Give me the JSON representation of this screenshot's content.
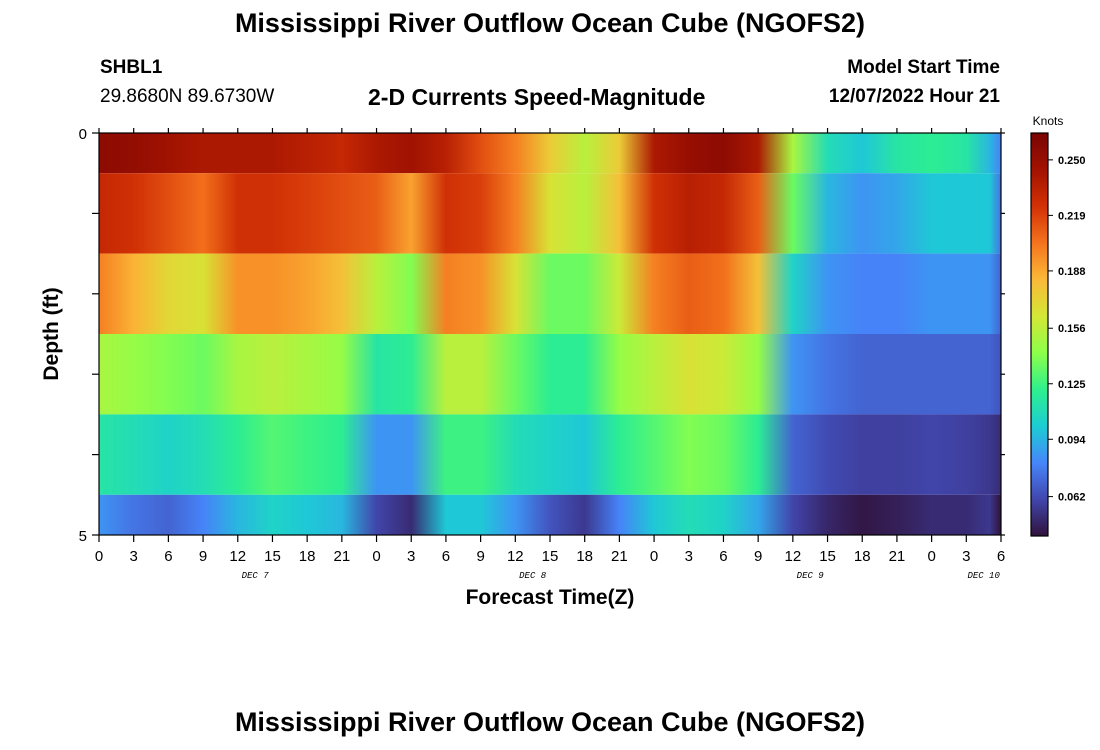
{
  "page": {
    "title_top": "Mississippi River Outflow Ocean Cube (NGOFS2)",
    "title_bottom": "Mississippi River Outflow Ocean Cube (NGOFS2)",
    "station_id": "SHBL1",
    "station_coords": "29.8680N  89.6730W",
    "subtitle": "2-D Currents Speed-Magnitude",
    "model_start_label": "Model Start Time",
    "model_start_value": "12/07/2022 Hour 21"
  },
  "colors": {
    "scale": [
      "#30123b",
      "#4146ad",
      "#4686fb",
      "#1ccdd3",
      "#2ef08d",
      "#8dff49",
      "#d4e735",
      "#fbb938",
      "#f4731d",
      "#d23105",
      "#a11201",
      "#7a0403"
    ]
  },
  "chart_data": {
    "type": "heatmap",
    "title": "2-D Currents Speed-Magnitude",
    "xlabel": "Forecast Time(Z)",
    "ylabel": "Depth (ft)",
    "ylim": [
      0,
      5
    ],
    "y_tick_labels": [
      "0",
      "5"
    ],
    "x_tick_labels": [
      "0",
      "3",
      "6",
      "9",
      "12",
      "15",
      "18",
      "21",
      "0",
      "3",
      "6",
      "9",
      "12",
      "15",
      "18",
      "21",
      "0",
      "3",
      "6",
      "9",
      "12",
      "15",
      "18",
      "21",
      "0",
      "3",
      "6"
    ],
    "date_labels": [
      {
        "label": "DEC 7",
        "hour": 13.5
      },
      {
        "label": "DEC 8",
        "hour": 37.5
      },
      {
        "label": "DEC 9",
        "hour": 61.5
      },
      {
        "label": "DEC 10",
        "hour": 76.5
      }
    ],
    "hours_total": 78,
    "layer_bounds": [
      0,
      0.5,
      1.5,
      2.5,
      3.5,
      4.5,
      5
    ],
    "colorbar": {
      "unit": "Knots",
      "min": 0.04,
      "max": 0.265,
      "tick_labels": [
        "0.250",
        "0.219",
        "0.188",
        "0.156",
        "0.125",
        "0.094",
        "0.062"
      ]
    },
    "series": [
      {
        "name": "depth layer 1 (surface)",
        "hours": [
          0,
          3,
          6,
          9,
          12,
          15,
          18,
          21,
          24,
          27,
          30,
          33,
          36,
          39,
          42,
          45,
          48,
          51,
          54,
          57,
          60,
          63,
          66,
          69,
          72,
          75,
          77,
          78
        ],
        "values": [
          0.255,
          0.252,
          0.245,
          0.24,
          0.24,
          0.24,
          0.235,
          0.23,
          0.24,
          0.245,
          0.235,
          0.215,
          0.2,
          0.175,
          0.155,
          0.175,
          0.24,
          0.25,
          0.255,
          0.24,
          0.15,
          0.11,
          0.1,
          0.115,
          0.12,
          0.115,
          0.095,
          0.08
        ]
      },
      {
        "name": "depth layer 2",
        "hours": [
          0,
          3,
          6,
          9,
          12,
          15,
          18,
          21,
          24,
          27,
          30,
          33,
          36,
          39,
          42,
          45,
          48,
          51,
          54,
          57,
          60,
          63,
          66,
          69,
          72,
          75,
          77,
          78
        ],
        "values": [
          0.23,
          0.225,
          0.215,
          0.205,
          0.225,
          0.225,
          0.22,
          0.215,
          0.21,
          0.19,
          0.225,
          0.22,
          0.2,
          0.165,
          0.155,
          0.18,
          0.225,
          0.235,
          0.23,
          0.21,
          0.135,
          0.095,
          0.085,
          0.09,
          0.1,
          0.1,
          0.1,
          0.075
        ]
      },
      {
        "name": "depth layer 3",
        "hours": [
          0,
          3,
          6,
          9,
          12,
          15,
          18,
          21,
          24,
          27,
          30,
          33,
          36,
          39,
          42,
          45,
          48,
          51,
          54,
          57,
          60,
          63,
          66,
          69,
          72,
          75,
          77,
          78
        ],
        "values": [
          0.2,
          0.185,
          0.17,
          0.165,
          0.195,
          0.195,
          0.19,
          0.18,
          0.155,
          0.14,
          0.2,
          0.195,
          0.165,
          0.135,
          0.135,
          0.16,
          0.2,
          0.21,
          0.205,
          0.18,
          0.105,
          0.085,
          0.08,
          0.08,
          0.085,
          0.085,
          0.085,
          0.07
        ]
      },
      {
        "name": "depth layer 4",
        "hours": [
          0,
          3,
          6,
          9,
          12,
          15,
          18,
          21,
          24,
          27,
          30,
          33,
          36,
          39,
          42,
          45,
          48,
          51,
          54,
          57,
          60,
          63,
          66,
          69,
          72,
          75,
          77,
          78
        ],
        "values": [
          0.15,
          0.145,
          0.14,
          0.135,
          0.15,
          0.155,
          0.15,
          0.145,
          0.115,
          0.12,
          0.155,
          0.155,
          0.135,
          0.12,
          0.12,
          0.145,
          0.155,
          0.165,
          0.16,
          0.145,
          0.085,
          0.075,
          0.07,
          0.07,
          0.07,
          0.07,
          0.07,
          0.065
        ]
      },
      {
        "name": "depth layer 5",
        "hours": [
          0,
          3,
          6,
          9,
          12,
          15,
          18,
          21,
          24,
          27,
          30,
          33,
          36,
          39,
          42,
          45,
          48,
          51,
          54,
          57,
          60,
          63,
          66,
          69,
          72,
          75,
          77,
          78
        ],
        "values": [
          0.115,
          0.11,
          0.105,
          0.11,
          0.12,
          0.13,
          0.125,
          0.12,
          0.085,
          0.085,
          0.125,
          0.125,
          0.11,
          0.105,
          0.1,
          0.12,
          0.13,
          0.14,
          0.135,
          0.12,
          0.07,
          0.062,
          0.058,
          0.058,
          0.06,
          0.058,
          0.055,
          0.05
        ]
      },
      {
        "name": "depth layer 6 (bottom)",
        "hours": [
          0,
          3,
          6,
          9,
          12,
          15,
          18,
          21,
          24,
          27,
          30,
          33,
          36,
          39,
          42,
          45,
          48,
          51,
          54,
          57,
          60,
          63,
          66,
          69,
          72,
          75,
          77,
          78
        ],
        "values": [
          0.085,
          0.075,
          0.07,
          0.08,
          0.095,
          0.105,
          0.1,
          0.095,
          0.06,
          0.05,
          0.1,
          0.1,
          0.085,
          0.065,
          0.055,
          0.08,
          0.1,
          0.11,
          0.105,
          0.09,
          0.06,
          0.048,
          0.042,
          0.045,
          0.05,
          0.05,
          0.055,
          0.01
        ]
      }
    ]
  }
}
